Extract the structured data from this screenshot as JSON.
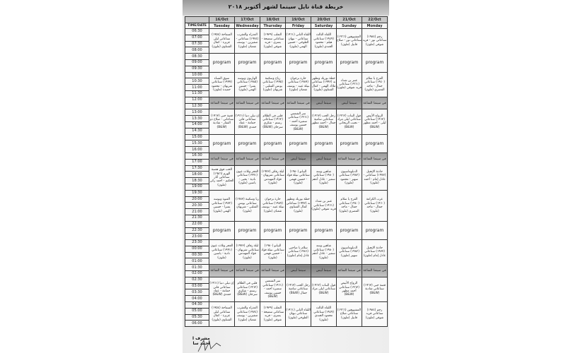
{
  "title": "خريطة قناة نايل سينما لشهر أكتوبر ٢٠١٨",
  "time_header": "TIME/DATE",
  "dates": [
    "16/Oct",
    "17/Oct",
    "18/Oct",
    "19/Oct",
    "20/Oct",
    "21/Oct",
    "22/Oct"
  ],
  "days": [
    "Tuesday",
    "Wednesday",
    "Thursday",
    "Friday",
    "Saturday",
    "Sunday",
    "Monday"
  ],
  "times": [
    "06:30",
    "07:00",
    "07:30",
    "08:00",
    "08:30",
    "09:00",
    "09:30",
    "10:00",
    "10:30",
    "11:00",
    "11:30",
    "12:00",
    "12:30",
    "13:00",
    "13:30",
    "14:00",
    "14:30",
    "15:00",
    "15:30",
    "16:00",
    "16:30",
    "17:00",
    "17:30",
    "18:00",
    "18:30",
    "19:00",
    "19:30",
    "20:00",
    "20:30",
    "21:00",
    "21:30",
    "22:00",
    "22:30",
    "23:00",
    "23:30",
    "00:00",
    "00:30",
    "01:00",
    "01:30",
    "02:00",
    "02:30",
    "03:00",
    "03:30",
    "04:00",
    "04:30",
    "05:00",
    "05:30",
    "06:00"
  ],
  "blocks": [
    {
      "type": "movie",
      "rows": 4,
      "cells": [
        "السفاحة (١٩٥٤) سناعاتي ليلى عزيزة - كمال الشناوي (ملون)",
        "العذراء والعقرب (١٩٧٤) سناعاتي - صفيرين - يوسف شعبان (ملون)",
        "الثعلب (١٩٣٩) سناعاتي سميحة - يسرى - فريد شوقي (ملون)",
        "اللقاء الثاني (١٩٦١) سناعاتي - نيهان الطوخي - حسين الهمي (ملون)",
        "اللقاء الثالث (١٩٤٩) سناعاتي هيلم - محمود الجندي (ملون)",
        "المشبوهين (١٩٦٦) سناعاتي نور - صلاح قابيل (ملون)",
        "رجم (١٩٨٤) سناعاتي نور - فريد شوقي (ملون)"
      ]
    },
    {
      "type": "program",
      "rows": 3,
      "label": "program"
    },
    {
      "type": "movie",
      "rows": 4,
      "cells": [
        "سوق النساء (١٩٩٩) سناعاتي شريهان - محمود حميدة (ملون)",
        "الهاربون وبوسه (١٩٨٥) سناعاتي يسرا - حسين الهمي (ملون)",
        "رباح وسكينة (١٩٩٥) سناعاتي يونس الشلبي - شريهان (ملون)",
        "حارة برجوان (١٩٨٩) سناعاتي نبيلة عبيد - يوسف شعبان (ملون)",
        "خطة بوريك وتظهر به (١٩٩٢) سناعاتي ملاك الهمى - كمال الشناوي (ملون)",
        "عنتر بن شداد (١٩٦١) سناعاتي فريد شوقي (ملون)",
        "الفرح يا سلام (١٩٤٠) سناعاتي جمال - ماجد المصري (ملون)"
      ]
    },
    {
      "type": "band",
      "rows": 2,
      "cells": [
        "في سينما الساعة",
        "في سينما الساعة",
        "في سينما الساعة",
        "في سينما الساعة",
        "سينما أبيض",
        "سينما أبيض",
        "في سينما الساعة"
      ],
      "dark": [
        false,
        false,
        false,
        false,
        true,
        true,
        false
      ]
    },
    {
      "type": "movie",
      "rows": 4,
      "cells": [
        "قصة حبي (١٩٦٣) سناعاتي - صلاح ذو الفقار - شادية (B&W)",
        "إن تيلي دنيا (١٩٦١) سناعاتي فاتن حمامة - عماد حمدي (B&W)",
        "قلبي في الظلام (١٩٦٢) سناعاتي رستم - شكري سرحان (B&W)",
        "سر الشمس (١٩٦١) سناعاتي سميرة أحمد - حسين يوسف (B&W)",
        "رجل الحب (١٩٦٣) سناعاتي سامية جمال - أحمد مظهر (B&W)",
        "قول البنات (١٩٦٢) سناعاتي ليلى مراد - نجيب الريحاني (B&W)",
        "الزواج الأبيض (١٩٦٣) سناعاتي ليلى - أحمد مظهر (B&W)"
      ]
    },
    {
      "type": "program",
      "rows": 3,
      "label": "program"
    },
    {
      "type": "band",
      "rows": 2,
      "cells": [
        "في سينما الساعة",
        "في سينما الساعة",
        "في سينما الساعة",
        "سينما أبيض",
        "سينما أبيض",
        "في سينما الساعة",
        "في سينما الساعة"
      ],
      "dark": [
        false,
        false,
        false,
        true,
        true,
        false,
        false
      ]
    },
    {
      "type": "movie",
      "rows": 4,
      "cells": [
        "الحب فوق هضبة الهرم (١٩٨٦) سناعاتي أثار الحكيم - أحمد زكي (ملون)",
        "الغجر وثلاث عيون (١٩٩١) سناعاتي نادية - يحيى - ياسين (ملون)",
        "ليلة زفاف (١٩٧٣) سناعاتي شريهان - فؤاد المهندس (ملون)",
        "البيانو (١٩٨٠) سناعاتي نبيلة فؤاد - حسين فهمي (ملون)",
        "شاهين وبنته (١٩٨٠) سناعاتي سمير - عادل أدهم (ملون)",
        "الدبلوماسيون (١٩٨٢) سناعاتي سهير - محمود (ملون)",
        "حادثة الإنجيل (١٩٧٧) سناعاتي - عادل إمام - أحمد (ملون)"
      ]
    },
    {
      "type": "movie",
      "rows": 5,
      "cells": [
        "الفتوة وبوسه (١٩٧٢) سناعاتي يسرا - حسين الهمي (ملون)",
        "ريا وسكينة (١٩٨٣) سناعاتي يونس الشلبي - شريهان (ملون)",
        "حارة برجوان (١٩٨٩) سناعاتي نبيلة عبيد - يوسف شعبان (ملون)",
        "خطة بوريك وتظهر به (١٩٩٢) سناعاتي كمال الشناوي (ملون)",
        "عنتر بن شداد (١٩٦١) سناعاتي فريد شوقي (ملون)",
        "الفرح يا سلام (١٩٤٠) سناعاتي جمال - ماجد المصري (ملون)",
        "عرب الكرامة (١٩٦٠) سناعاتي جمال - ماجد (ملون)"
      ]
    },
    {
      "type": "program",
      "rows": 3,
      "label": "program"
    },
    {
      "type": "movie",
      "rows": 4,
      "cells": [
        "الغجر وثلاث عيون (١٩٩١) سناعاتي نادية - ياسين (ملون)",
        "ليلة زفاف (١٩٧٣) سناعاتي شريهان - فؤاد المهندس (ملون)",
        "البيانو (١٩٨٠) سناعاتي نبيلة فؤاد - حسين فهمي (ملون)",
        "سلام يا صاحبي (١٩٨٦) سناعاتي عادل إمام (ملون)",
        "شاهين وبنته (١٩٨٠) سناعاتي سمير - عادل أدهم (ملون)",
        "الدبلوماسيون (١٩٨٢) سناعاتي سهير (ملون)",
        "حادثة الإنجيل (١٩٧٧) سناعاتي عادل إمام (ملون)"
      ]
    },
    {
      "type": "band",
      "rows": 2,
      "cells": [
        "في سينما الساعة",
        "في سينما الساعة",
        "في سينما الساعة",
        "سينما أبيض",
        "سينما أبيض",
        "في سينما الساعة",
        "في سينما الساعة"
      ],
      "dark": [
        false,
        false,
        false,
        true,
        true,
        false,
        false
      ]
    },
    {
      "type": "movie",
      "rows": 4,
      "cells": [
        "إن تيلي دنيا (١٩٦١) سناعاتي فاتن حمامة - عماد حمدي (B&W)",
        "قلبي في الظلام (١٩٦٢) سناعاتي رستم - شكري سرحان (B&W)",
        "سر الشمس (١٩٦١) سناعاتي سميرة أحمد - حسين يوسف (B&W)",
        "رجل الحب (١٩٦٣) سناعاتي سامية جمال (B&W)",
        "قول البنات (١٩٦٢) سناعاتي ليلى مراد (B&W)",
        "الزواج الأبيض (١٩٦٣) سناعاتي أحمد مظهر (B&W)",
        "قصة حبي (١٩٦٣) سناعاتي شادية (B&W)"
      ]
    },
    {
      "type": "movie",
      "rows": 4,
      "cells": [
        "السفاحة (١٩٥٤) سناعاتي ليلى عزيزة - كمال الشناوي (ملون)",
        "العذراء والعقرب (١٩٧٤) سناعاتي صفيرين - يوسف شعبان (ملون)",
        "الثعلب (١٩٣٩) سناعاتي سميحة - يسرى - فريد شوقي (ملون)",
        "اللقاء الثاني (١٩٦١) سناعاتي نيهان الطوخي (ملون)",
        "اللقاء الثالث (١٩٤٩) سناعاتي محمود الجندي (ملون)",
        "المشبوهين (١٩٦٦) سناعاتي صلاح قابيل (ملون)",
        "رجم (١٩٨٤) سناعاتي فريد شوقي (ملون)"
      ]
    }
  ],
  "footer": {
    "line1": "مشرف ا",
    "line2": "أحمد سا"
  }
}
